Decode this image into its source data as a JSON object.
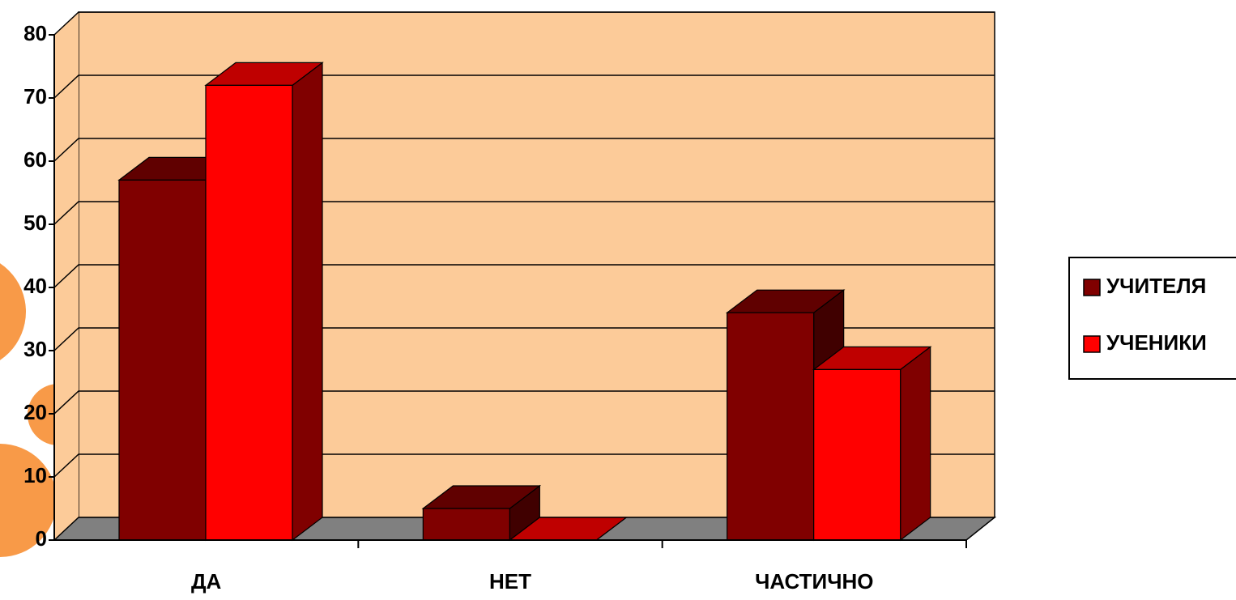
{
  "chart_data": {
    "type": "bar3d",
    "categories": [
      "ДА",
      "НЕТ",
      "ЧАСТИЧНО"
    ],
    "series": [
      {
        "name": "УЧИТЕЛЯ",
        "color": "#800000",
        "values": [
          57,
          5,
          36
        ]
      },
      {
        "name": "УЧЕНИКИ",
        "color": "#ff0000",
        "values": [
          72,
          0,
          27
        ]
      }
    ],
    "ylim": [
      0,
      80
    ],
    "yticks": [
      0,
      10,
      20,
      30,
      40,
      50,
      60,
      70,
      80
    ],
    "grid": true,
    "legend": "right"
  }
}
